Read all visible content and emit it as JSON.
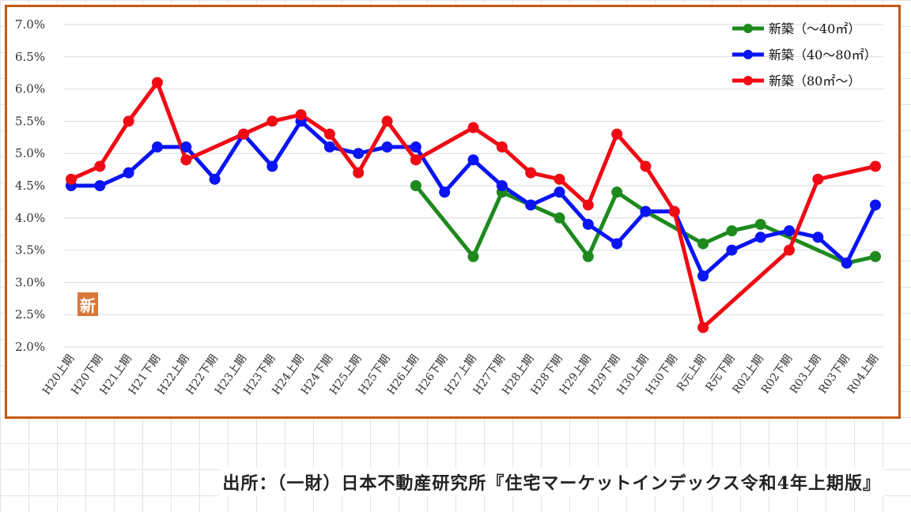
{
  "chart_data": {
    "type": "line",
    "categories": [
      "H20上期",
      "H20下期",
      "H21上期",
      "H21下期",
      "H22上期",
      "H22下期",
      "H23上期",
      "H23下期",
      "H24上期",
      "H24下期",
      "H25上期",
      "H25下期",
      "H26上期",
      "H26下期",
      "H27上期",
      "H27下期",
      "H28上期",
      "H28下期",
      "H29上期",
      "H29下期",
      "H30上期",
      "H30下期",
      "R元上期",
      "R元下期",
      "R02上期",
      "R02下期",
      "R03上期",
      "R03下期",
      "R04上期"
    ],
    "ylim": [
      2.0,
      7.0
    ],
    "yticks": [
      "2.0%",
      "2.5%",
      "3.0%",
      "3.5%",
      "4.0%",
      "4.5%",
      "5.0%",
      "5.5%",
      "6.0%",
      "6.5%",
      "7.0%"
    ],
    "grid": "horizontal",
    "legend_position": "top-right",
    "series": [
      {
        "name": "新築（～40㎡）",
        "color": "#1e8a1e",
        "values": [
          null,
          null,
          null,
          null,
          null,
          null,
          null,
          null,
          null,
          null,
          null,
          null,
          4.5,
          null,
          3.4,
          4.4,
          4.2,
          4.0,
          3.4,
          4.4,
          4.1,
          null,
          3.6,
          3.8,
          3.9,
          null,
          null,
          3.3,
          3.4
        ]
      },
      {
        "name": "新築（40～80㎡）",
        "color": "#0a14f5",
        "values": [
          4.5,
          4.5,
          4.7,
          5.1,
          5.1,
          4.6,
          5.3,
          4.8,
          5.5,
          5.1,
          5.0,
          5.1,
          5.1,
          4.4,
          4.9,
          4.5,
          4.2,
          4.4,
          3.9,
          3.6,
          4.1,
          4.1,
          3.1,
          3.5,
          3.7,
          3.8,
          3.7,
          3.3,
          4.2
        ]
      },
      {
        "name": "新築（80㎡～）",
        "color": "#f00a14",
        "values": [
          4.6,
          4.8,
          5.5,
          6.1,
          4.9,
          null,
          5.3,
          5.5,
          5.6,
          5.3,
          4.7,
          5.5,
          4.9,
          null,
          5.4,
          5.1,
          4.7,
          4.6,
          4.2,
          5.3,
          4.8,
          4.1,
          2.3,
          null,
          null,
          3.5,
          4.6,
          null,
          4.8
        ]
      }
    ]
  },
  "stamp": {
    "label": "新"
  },
  "source": {
    "text": "出所：（一財）日本不動産研究所『住宅マーケットインデックス令和4年上期版』"
  }
}
